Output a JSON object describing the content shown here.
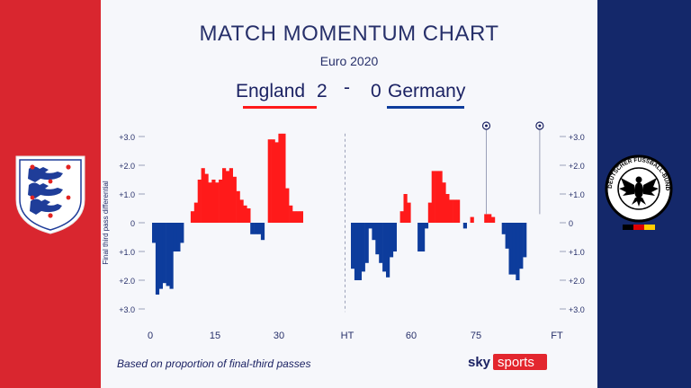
{
  "header": {
    "title": "MATCH MOMENTUM CHART",
    "subtitle": "Euro 2020",
    "home_team": "England",
    "home_score": "2",
    "separator": "-",
    "away_score": "0",
    "away_team": "Germany"
  },
  "footer": {
    "note": "Based on proportion of final-third passes",
    "brand_sky": "sky",
    "brand_sports": "sports"
  },
  "crest_right_text": "DEUTSCHER FUSSBALL-BUND",
  "colors": {
    "england": "#ff1a1a",
    "germany": "#0d3c9c",
    "title": "#27306a",
    "left_panel": "#d9262f",
    "right_panel": "#14286a"
  },
  "chart_data": {
    "type": "bar",
    "ylabel": "Final third pass differential",
    "ylim": [
      -3,
      3
    ],
    "y_ticks": [
      "+3.0",
      "+2.0",
      "+1.0",
      "0",
      "-1.0",
      "-2.0",
      "-3.0"
    ],
    "y_tick_labels": [
      "+3.0",
      "+2.0",
      "+1.0",
      "0",
      "+1.0",
      "+2.0",
      "+3.0"
    ],
    "x_ticks": [
      {
        "label": "0",
        "minute": 0
      },
      {
        "label": "15",
        "minute": 15
      },
      {
        "label": "30",
        "minute": 30
      },
      {
        "label": "HT",
        "minute": 45
      },
      {
        "label": "60",
        "minute": 60
      },
      {
        "label": "75",
        "minute": 75
      },
      {
        "label": "FT",
        "minute": 90
      }
    ],
    "halftime_minute": 45,
    "goal_minutes": [
      75,
      86
    ],
    "first_half": [
      -0.7,
      -2.5,
      -2.3,
      -2.1,
      -2.2,
      -2.3,
      -1.0,
      -1.0,
      -0.7,
      0.0,
      0.0,
      0.4,
      0.7,
      1.5,
      1.9,
      1.7,
      1.4,
      1.5,
      1.4,
      1.5,
      1.9,
      1.8,
      1.9,
      1.6,
      1.1,
      0.8,
      0.6,
      0.5,
      -0.4,
      -0.4,
      -0.4,
      -0.6,
      0.0,
      2.9,
      2.9,
      2.8,
      3.1,
      3.1,
      1.2,
      0.6,
      0.4,
      0.4,
      0.4
    ],
    "second_half": [
      -1.6,
      -2.0,
      -2.0,
      -1.7,
      -1.4,
      -0.2,
      -0.6,
      -1.1,
      -1.4,
      -1.7,
      -1.9,
      -1.2,
      -1.0,
      0.0,
      0.4,
      1.0,
      0.7,
      0.0,
      0.0,
      -1.0,
      -1.0,
      -0.2,
      0.7,
      1.8,
      1.8,
      1.8,
      1.4,
      1.0,
      0.8,
      0.8,
      0.8,
      0.0,
      -0.2,
      0.0,
      0.2,
      0.0,
      0.0,
      0.0,
      0.3,
      0.3,
      0.2,
      0.0,
      0.0,
      -0.4,
      -0.9,
      -1.8,
      -1.8,
      -2.0,
      -1.6,
      -1.2
    ]
  }
}
